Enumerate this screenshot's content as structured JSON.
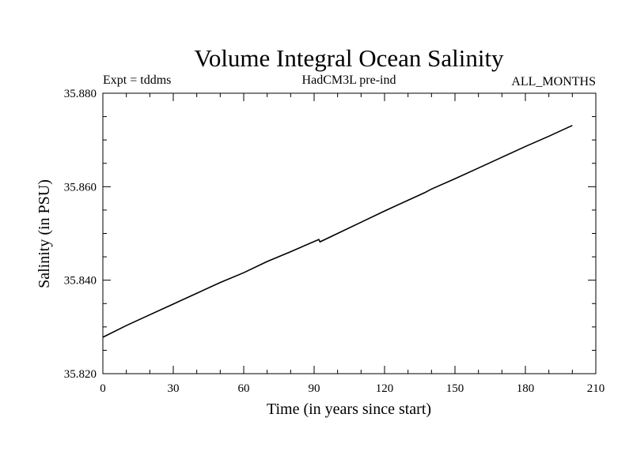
{
  "chart_data": {
    "type": "line",
    "title": "Volume Integral Ocean Salinity",
    "subtitle_left": "Expt = tddms",
    "subtitle_center": "HadCM3L pre-ind",
    "subtitle_right": "ALL_MONTHS",
    "xlabel": "Time (in years since start)",
    "ylabel": "Salinity (in PSU)",
    "xlim": [
      0,
      210
    ],
    "ylim": [
      35.82,
      35.88
    ],
    "x_ticks": [
      0,
      30,
      60,
      90,
      120,
      150,
      180,
      210
    ],
    "x_tick_labels": [
      "0",
      "30",
      "60",
      "90",
      "120",
      "150",
      "180",
      "210"
    ],
    "y_ticks": [
      35.82,
      35.84,
      35.86,
      35.88
    ],
    "y_tick_labels": [
      "35.820",
      "35.840",
      "35.860",
      "35.880"
    ],
    "grid": false,
    "legend": "none",
    "line_color": "#000000",
    "series": [
      {
        "x": [
          0,
          10,
          20,
          30,
          40,
          50,
          60,
          70,
          80,
          92,
          92.5,
          100,
          110,
          120,
          130,
          137,
          140,
          150,
          160,
          170,
          180,
          190,
          200
        ],
        "values": [
          35.8278,
          35.8303,
          35.8326,
          35.8349,
          35.8372,
          35.8395,
          35.8416,
          35.844,
          35.8461,
          35.8487,
          35.8482,
          35.85,
          35.8524,
          35.8548,
          35.8571,
          35.8587,
          35.8595,
          35.8617,
          35.864,
          35.8663,
          35.8686,
          35.8708,
          35.8731
        ]
      }
    ]
  }
}
